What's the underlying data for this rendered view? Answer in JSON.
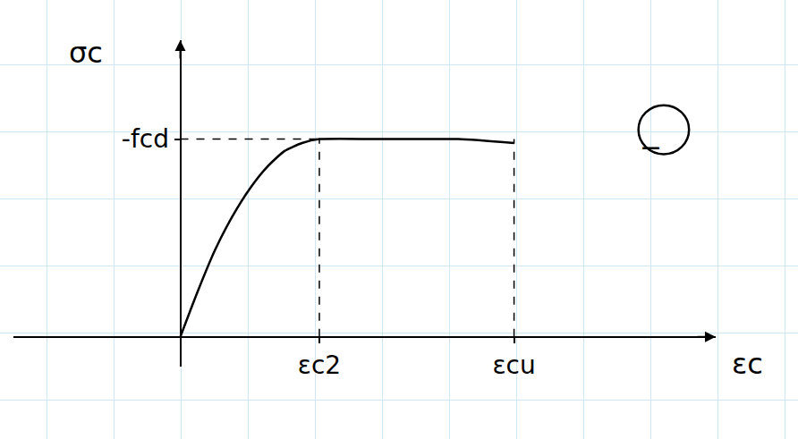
{
  "chart_data": {
    "type": "line",
    "x_label": "εc",
    "y_label": "σc",
    "x": [
      0,
      0.25,
      0.5,
      0.75,
      1,
      1.25,
      1.5,
      1.75,
      2,
      3,
      4,
      4.8
    ],
    "values": [
      0,
      0.23,
      0.44,
      0.61,
      0.75,
      0.86,
      0.94,
      0.98,
      1,
      1,
      1,
      0.98
    ],
    "color": "#000000",
    "xlim": [
      -2.4,
      7.7
    ],
    "ylim": [
      -0.15,
      1.5
    ],
    "xticks": [
      {
        "value": 2,
        "label": "εc2"
      },
      {
        "value": 4.8,
        "label": "εcu"
      }
    ],
    "yticks": [
      {
        "value": 1,
        "label": "-fcd"
      }
    ],
    "annotations": [
      "−"
    ]
  }
}
